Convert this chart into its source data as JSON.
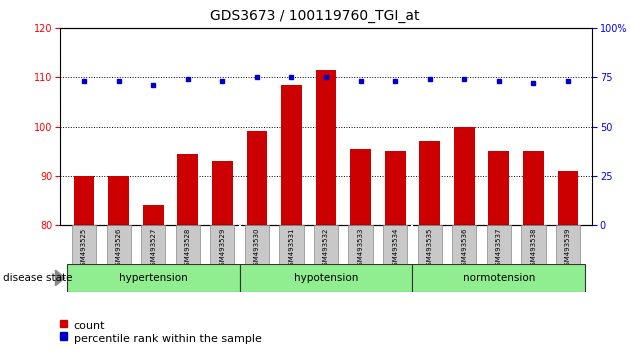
{
  "title": "GDS3673 / 100119760_TGI_at",
  "samples": [
    "GSM493525",
    "GSM493526",
    "GSM493527",
    "GSM493528",
    "GSM493529",
    "GSM493530",
    "GSM493531",
    "GSM493532",
    "GSM493533",
    "GSM493534",
    "GSM493535",
    "GSM493536",
    "GSM493537",
    "GSM493538",
    "GSM493539"
  ],
  "count_values": [
    90,
    90,
    84,
    94.5,
    93,
    99,
    108.5,
    111.5,
    95.5,
    95,
    97,
    100,
    95,
    95,
    91
  ],
  "percentile_values": [
    73,
    73,
    71,
    74,
    73,
    75,
    75,
    75,
    73,
    73,
    74,
    74,
    73,
    72,
    73
  ],
  "ylim_left": [
    80,
    120
  ],
  "ylim_right": [
    0,
    100
  ],
  "yticks_left": [
    80,
    90,
    100,
    110,
    120
  ],
  "yticks_right": [
    0,
    25,
    50,
    75,
    100
  ],
  "bar_color": "#CC0000",
  "dot_color": "#0000CC",
  "bar_width": 0.6,
  "group_bg_color": "#90EE90",
  "tick_label_bg": "#C8C8C8",
  "title_fontsize": 10,
  "legend_count_label": "count",
  "legend_pct_label": "percentile rank within the sample",
  "disease_state_label": "disease state",
  "group_info": [
    [
      0,
      4,
      "hypertension"
    ],
    [
      5,
      9,
      "hypotension"
    ],
    [
      10,
      14,
      "normotension"
    ]
  ]
}
